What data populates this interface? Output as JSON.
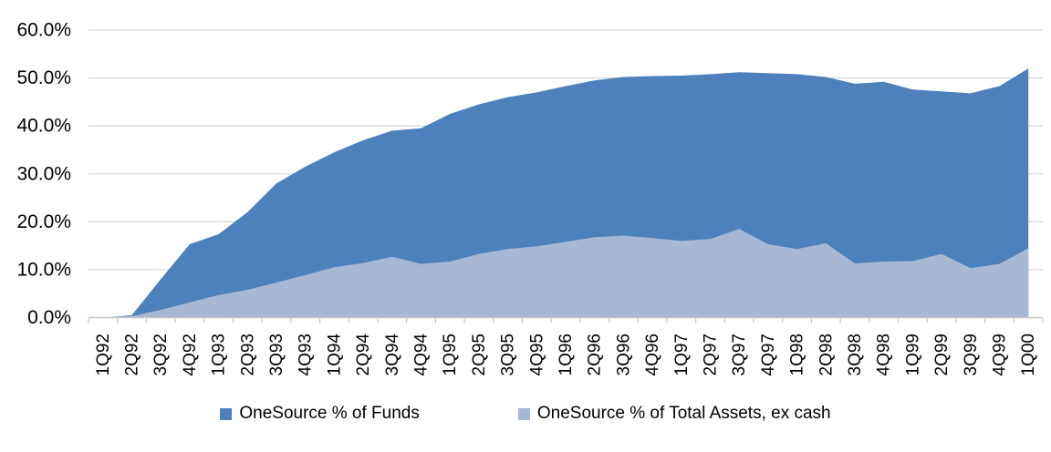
{
  "chart_data": {
    "type": "area",
    "title": "",
    "xlabel": "",
    "ylabel": "",
    "mode": "overlap",
    "grid": "horizontal",
    "legend_position": "bottom-center",
    "ylim": [
      0,
      60
    ],
    "ytick_step": 10,
    "ytick_labels": [
      "0.0%",
      "10.0%",
      "20.0%",
      "30.0%",
      "40.0%",
      "50.0%",
      "60.0%"
    ],
    "categories": [
      "1Q92",
      "2Q92",
      "3Q92",
      "4Q92",
      "1Q93",
      "2Q93",
      "3Q93",
      "4Q93",
      "1Q94",
      "2Q94",
      "3Q94",
      "4Q94",
      "1Q95",
      "2Q95",
      "3Q95",
      "4Q95",
      "1Q96",
      "2Q96",
      "3Q96",
      "4Q96",
      "1Q97",
      "2Q97",
      "3Q97",
      "4Q97",
      "1Q98",
      "2Q98",
      "3Q98",
      "4Q98",
      "1Q99",
      "2Q99",
      "3Q99",
      "4Q99",
      "1Q00"
    ],
    "series": [
      {
        "name": "OneSource % of Funds",
        "color": "#4d81bb",
        "values": [
          0,
          0.5,
          8,
          15.3,
          17.4,
          22,
          28,
          31.5,
          34.5,
          37,
          39,
          39.5,
          42.5,
          44.5,
          46,
          47,
          48.3,
          49.5,
          50.2,
          50.4,
          50.5,
          50.8,
          51.2,
          51,
          50.8,
          50.2,
          48.8,
          49.2,
          47.6,
          47.2,
          46.8,
          48.3,
          52
        ]
      },
      {
        "name": "OneSource % of Total Assets, ex cash",
        "color": "#a6b8d4",
        "values": [
          0,
          0.3,
          1.6,
          3.2,
          4.7,
          5.8,
          7.3,
          8.9,
          10.5,
          11.4,
          12.7,
          11.2,
          11.7,
          13.3,
          14.3,
          14.9,
          15.8,
          16.8,
          17.1,
          16.6,
          16,
          16.4,
          18.5,
          15.3,
          14.3,
          15.5,
          11.3,
          11.7,
          11.8,
          13.3,
          10.3,
          11.2,
          14.5
        ]
      }
    ]
  },
  "colors": {
    "gridline": "#d9d9d9",
    "axis": "#c6c6c6",
    "text": "#000000",
    "background": "#ffffff"
  }
}
